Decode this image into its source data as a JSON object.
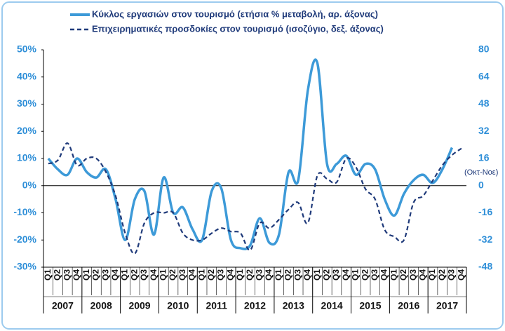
{
  "chart_data": {
    "type": "line",
    "series": [
      {
        "name": "Κύκλος εργασιών στον τουρισμό (ετήσια % μεταβολή, αρ. άξονας)",
        "color": "#3d9ad8",
        "style": "solid",
        "values": [
          10,
          6,
          4,
          10,
          5,
          3,
          6,
          -5,
          -20,
          -5,
          -2,
          -18,
          3,
          -10,
          -8,
          -16,
          -20,
          -2,
          -1,
          -20,
          -23,
          -22,
          -12,
          -21,
          -18,
          5,
          2,
          35,
          45,
          8,
          8,
          11,
          4,
          8,
          6,
          -5,
          -11,
          -3,
          2,
          4,
          1,
          6,
          14,
          null
        ]
      },
      {
        "name": "Επιχειρηματικές προσδοκίες στον τουρισμό (ισοζύγιο, δεξ. άξονας)",
        "color": "#1f3a7a",
        "style": "dashed",
        "axis": "y2",
        "values": [
          13,
          15,
          25,
          12,
          16,
          16,
          8,
          -6,
          -28,
          -40,
          -22,
          -16,
          -16,
          -16,
          -28,
          -32,
          -32,
          -28,
          -25,
          -27,
          -28,
          -38,
          -22,
          -25,
          -20,
          -14,
          -10,
          -22,
          6,
          4,
          2,
          16,
          11,
          -2,
          -8,
          -26,
          -30,
          -32,
          -10,
          -6,
          3,
          12,
          18,
          22
        ]
      }
    ],
    "quarters": [
      "Q1",
      "Q2",
      "Q3",
      "Q4",
      "Q1",
      "Q2",
      "Q3",
      "Q4",
      "Q1",
      "Q2",
      "Q3",
      "Q4",
      "Q1",
      "Q2",
      "Q3",
      "Q4",
      "Q1",
      "Q2",
      "Q3",
      "Q4",
      "Q1",
      "Q2",
      "Q3",
      "Q4",
      "Q1",
      "Q2",
      "Q3",
      "Q4",
      "Q1",
      "Q2",
      "Q3",
      "Q4",
      "Q1",
      "Q2",
      "Q3",
      "Q4",
      "Q1",
      "Q2",
      "Q3",
      "Q4",
      "Q1",
      "Q2",
      "Q3",
      "Q4"
    ],
    "years": [
      "2007",
      "2008",
      "2009",
      "2010",
      "2011",
      "2012",
      "2013",
      "2014",
      "2015",
      "2016",
      "2017"
    ],
    "ylim": [
      -30,
      50
    ],
    "yticks": [
      {
        "value": 50,
        "label": "50%"
      },
      {
        "value": 40,
        "label": "40%"
      },
      {
        "value": 30,
        "label": "30%"
      },
      {
        "value": 20,
        "label": "20%"
      },
      {
        "value": 10,
        "label": "10%"
      },
      {
        "value": 0,
        "label": "0%"
      },
      {
        "value": -10,
        "label": "-10%"
      },
      {
        "value": -20,
        "label": "-20%"
      },
      {
        "value": -30,
        "label": "-30%"
      }
    ],
    "y2lim": [
      -48,
      80
    ],
    "y2ticks": [
      80,
      64,
      48,
      32,
      16,
      0,
      -16,
      -32,
      -48
    ],
    "annotation": "(Οκτ-Νοε)"
  }
}
